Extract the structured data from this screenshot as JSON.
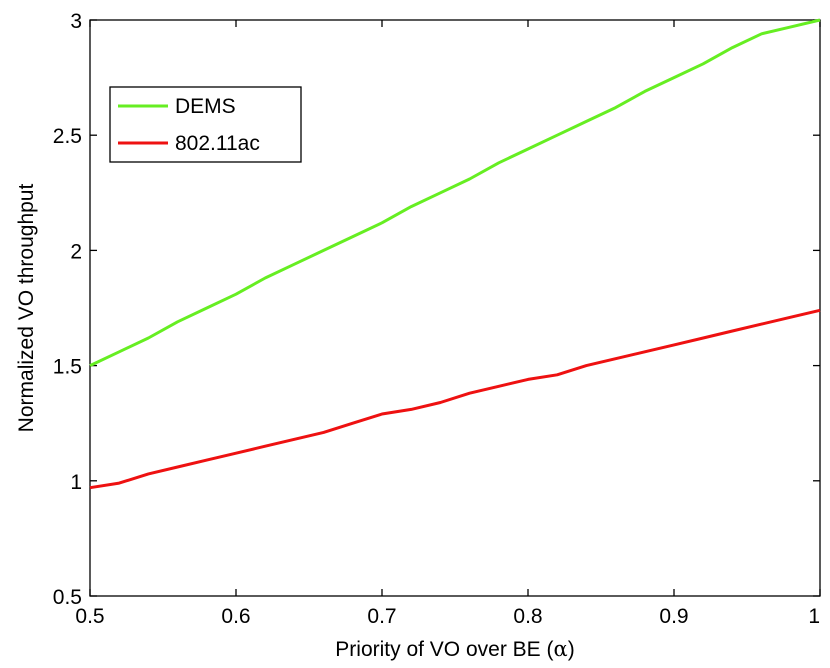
{
  "chart_data": {
    "type": "line",
    "title": "",
    "xlabel": "Priority of VO over BE (",
    "xlabel_symbol": "α",
    "xlabel_close": ")",
    "ylabel": "Normalized VO throughput",
    "xlim": [
      0.5,
      1
    ],
    "ylim": [
      0.5,
      3
    ],
    "xticks": [
      0.5,
      0.6,
      0.7,
      0.8,
      0.9,
      1
    ],
    "xtick_labels": [
      "0.5",
      "0.6",
      "0.7",
      "0.8",
      "0.9",
      "1"
    ],
    "yticks": [
      0.5,
      1,
      1.5,
      2,
      2.5,
      3
    ],
    "ytick_labels": [
      "0.5",
      "1",
      "1.5",
      "2",
      "2.5",
      "3"
    ],
    "grid": false,
    "legend_position": "top-left",
    "series": [
      {
        "name": "DEMS",
        "color": "#66ee22",
        "x": [
          0.5,
          0.52,
          0.54,
          0.56,
          0.58,
          0.6,
          0.62,
          0.64,
          0.66,
          0.68,
          0.7,
          0.72,
          0.74,
          0.76,
          0.78,
          0.8,
          0.82,
          0.84,
          0.86,
          0.88,
          0.9,
          0.92,
          0.94,
          0.96,
          0.98,
          1.0
        ],
        "y": [
          1.5,
          1.56,
          1.62,
          1.69,
          1.75,
          1.81,
          1.88,
          1.94,
          2.0,
          2.06,
          2.12,
          2.19,
          2.25,
          2.31,
          2.38,
          2.44,
          2.5,
          2.56,
          2.62,
          2.69,
          2.75,
          2.81,
          2.88,
          2.94,
          2.97,
          3.0
        ]
      },
      {
        "name": "802.11ac",
        "color": "#ee1111",
        "x": [
          0.5,
          0.52,
          0.54,
          0.56,
          0.58,
          0.6,
          0.62,
          0.64,
          0.66,
          0.68,
          0.7,
          0.72,
          0.74,
          0.76,
          0.78,
          0.8,
          0.82,
          0.84,
          0.86,
          0.88,
          0.9,
          0.92,
          0.94,
          0.96,
          0.98,
          1.0
        ],
        "y": [
          0.97,
          0.99,
          1.03,
          1.06,
          1.09,
          1.12,
          1.15,
          1.18,
          1.21,
          1.25,
          1.29,
          1.31,
          1.34,
          1.38,
          1.41,
          1.44,
          1.46,
          1.5,
          1.53,
          1.56,
          1.59,
          1.62,
          1.65,
          1.68,
          1.71,
          1.74
        ]
      }
    ]
  }
}
